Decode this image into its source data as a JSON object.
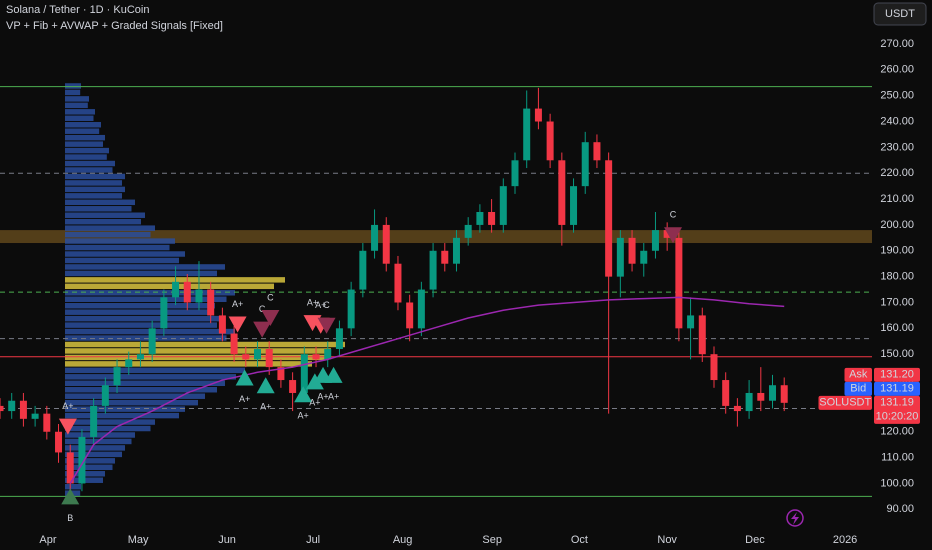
{
  "chart_data": {
    "type": "candlestick",
    "title": "Solana / Tether · 1D · KuCoin",
    "subtitle": "VP + Fib + AVWAP + Graded Signals [Fixed]",
    "currency_button": "USDT",
    "up_color": "#089981",
    "down_color": "#f23645",
    "x": [
      0,
      1,
      2,
      3,
      4,
      5,
      6,
      7,
      8,
      9,
      10,
      11,
      12,
      13,
      14,
      15,
      16,
      17,
      18,
      19,
      20,
      21,
      22,
      23,
      24,
      25,
      26,
      27,
      28,
      29,
      30,
      31,
      32,
      33,
      34,
      35,
      36,
      37,
      38,
      39,
      40,
      41,
      42,
      43,
      44,
      45,
      46,
      47,
      48,
      49,
      50,
      51,
      52,
      53,
      54,
      55,
      56,
      57,
      58,
      59,
      60,
      61,
      62,
      63,
      64,
      65,
      66,
      67
    ],
    "open": [
      130,
      128,
      132,
      125,
      127,
      120,
      112,
      100,
      118,
      130,
      138,
      145,
      148,
      150,
      160,
      172,
      178,
      170,
      175,
      165,
      158,
      150,
      148,
      152,
      145,
      140,
      135,
      150,
      148,
      152,
      160,
      175,
      190,
      200,
      185,
      170,
      160,
      175,
      190,
      185,
      195,
      200,
      205,
      200,
      215,
      225,
      245,
      240,
      225,
      200,
      215,
      232,
      225,
      180,
      195,
      185,
      190,
      198,
      195,
      160,
      165,
      150,
      140,
      130,
      128,
      135,
      132,
      138
    ],
    "high": [
      133,
      135,
      135,
      130,
      130,
      123,
      115,
      121,
      133,
      141,
      148,
      151,
      155,
      163,
      175,
      184,
      181,
      186,
      178,
      168,
      161,
      153,
      155,
      155,
      148,
      143,
      153,
      153,
      155,
      163,
      178,
      193,
      206,
      203,
      188,
      173,
      178,
      193,
      193,
      198,
      203,
      208,
      210,
      218,
      228,
      252,
      253,
      243,
      228,
      218,
      236,
      235,
      228,
      198,
      198,
      193,
      205,
      201,
      198,
      172,
      168,
      153,
      143,
      133,
      140,
      145,
      142,
      141
    ],
    "low": [
      125,
      125,
      122,
      122,
      117,
      108,
      95,
      97,
      115,
      127,
      135,
      142,
      145,
      147,
      157,
      169,
      167,
      167,
      162,
      155,
      147,
      145,
      145,
      142,
      137,
      128,
      132,
      145,
      145,
      149,
      157,
      172,
      187,
      182,
      167,
      155,
      157,
      172,
      182,
      182,
      192,
      197,
      197,
      197,
      212,
      222,
      237,
      222,
      192,
      197,
      212,
      222,
      127,
      172,
      182,
      180,
      187,
      190,
      155,
      148,
      147,
      137,
      127,
      122,
      125,
      128,
      129,
      128
    ],
    "close": [
      128,
      132,
      125,
      127,
      120,
      112,
      100,
      118,
      130,
      138,
      145,
      148,
      150,
      160,
      172,
      178,
      170,
      175,
      165,
      158,
      150,
      148,
      152,
      145,
      140,
      135,
      150,
      148,
      152,
      160,
      175,
      190,
      200,
      185,
      170,
      160,
      175,
      190,
      185,
      195,
      200,
      205,
      200,
      215,
      225,
      245,
      240,
      225,
      200,
      215,
      232,
      225,
      180,
      195,
      185,
      190,
      198,
      195,
      160,
      165,
      150,
      140,
      130,
      128,
      135,
      132,
      138,
      131.19
    ],
    "xlim": [
      0,
      74.5
    ],
    "xticks": [
      {
        "value": 4.1,
        "label": "Apr"
      },
      {
        "value": 11.8,
        "label": "May"
      },
      {
        "value": 19.4,
        "label": "Jun"
      },
      {
        "value": 26.75,
        "label": "Jul"
      },
      {
        "value": 34.4,
        "label": "Aug"
      },
      {
        "value": 42.05,
        "label": "Sep"
      },
      {
        "value": 49.5,
        "label": "Oct"
      },
      {
        "value": 57,
        "label": "Nov"
      },
      {
        "value": 64.5,
        "label": "Dec"
      },
      {
        "value": 72.2,
        "label": "2026"
      }
    ],
    "ylim": [
      82,
      287
    ],
    "yticks": [
      {
        "value": 90,
        "label": "90.00"
      },
      {
        "value": 100,
        "label": "100.00"
      },
      {
        "value": 110,
        "label": "110.00"
      },
      {
        "value": 120,
        "label": "120.00"
      },
      {
        "value": 130,
        "label": "130.00"
      },
      {
        "value": 140,
        "label": "140.00"
      },
      {
        "value": 150,
        "label": "150.00"
      },
      {
        "value": 160,
        "label": "160.00"
      },
      {
        "value": 170,
        "label": "170.00"
      },
      {
        "value": 180,
        "label": "180.00"
      },
      {
        "value": 190,
        "label": "190.00"
      },
      {
        "value": 200,
        "label": "200.00"
      },
      {
        "value": 210,
        "label": "210.00"
      },
      {
        "value": 220,
        "label": "220.00"
      },
      {
        "value": 230,
        "label": "230.00"
      },
      {
        "value": 240,
        "label": "240.00"
      },
      {
        "value": 250,
        "label": "250.00"
      },
      {
        "value": 260,
        "label": "260.00"
      },
      {
        "value": 270,
        "label": "270.00"
      }
    ],
    "volume_profile": {
      "levels": [
        95,
        100,
        105,
        110,
        115,
        120,
        125,
        130,
        135,
        140,
        145,
        150,
        155,
        160,
        165,
        170,
        175,
        180,
        185,
        190,
        195,
        200,
        205,
        210,
        215,
        220,
        225,
        230,
        235,
        240,
        245,
        250
      ],
      "volumes": [
        8,
        20,
        25,
        30,
        35,
        45,
        60,
        70,
        80,
        90,
        130,
        140,
        85,
        80,
        75,
        85,
        110,
        80,
        60,
        55,
        45,
        40,
        35,
        30,
        30,
        25,
        22,
        20,
        18,
        15,
        12,
        8
      ],
      "color": "#2a4d9c",
      "value_area_color": "#d9c440",
      "value_area": [
        [
          145,
          155
        ],
        [
          175,
          180
        ]
      ]
    },
    "zones": [
      {
        "from": 193,
        "to": 198,
        "color": "#6b4f1e"
      }
    ],
    "hlines": [
      {
        "value": 253.5,
        "color": "#4caf50",
        "style": "solid"
      },
      {
        "value": 95,
        "color": "#4caf50",
        "style": "solid"
      },
      {
        "value": 220,
        "color": "#787b86",
        "style": "dashed"
      },
      {
        "value": 174,
        "color": "#4caf50",
        "style": "dashed"
      },
      {
        "value": 156,
        "color": "#787b86",
        "style": "dashed"
      },
      {
        "value": 129,
        "color": "#787b86",
        "style": "dashed"
      },
      {
        "value": 149,
        "color": "#f23645",
        "style": "solid"
      }
    ],
    "avwap": {
      "color": "#9c27b0",
      "x": [
        6,
        8,
        10,
        13,
        16,
        19,
        22,
        25,
        28,
        31,
        34,
        37,
        40,
        43,
        46,
        49,
        52,
        55,
        58,
        61,
        64,
        67
      ],
      "values": [
        100,
        115,
        122,
        128,
        135,
        140,
        143,
        145,
        148,
        152,
        156,
        160,
        164,
        167,
        169,
        170,
        171,
        171.5,
        172,
        171,
        169.5,
        168.5
      ]
    },
    "signals": [
      {
        "x": 6,
        "price": 95,
        "dir": "up",
        "label": "B",
        "color": "#3d7a4f"
      },
      {
        "x": 5.8,
        "price": 122,
        "dir": "down",
        "label": "A+",
        "color": "#f7525f"
      },
      {
        "x": 20.3,
        "price": 161.5,
        "dir": "down",
        "label": "A+",
        "color": "#f7525f"
      },
      {
        "x": 22.4,
        "price": 159.5,
        "dir": "down",
        "label": "C",
        "color": "#8e2e4f"
      },
      {
        "x": 23.1,
        "price": 164,
        "dir": "down",
        "label": "C",
        "color": "#8e2e4f"
      },
      {
        "x": 26.7,
        "price": 162,
        "dir": "down",
        "label": "A+",
        "color": "#f7525f"
      },
      {
        "x": 27.4,
        "price": 161,
        "dir": "down",
        "label": "A+",
        "color": "#f7525f"
      },
      {
        "x": 27.9,
        "price": 161,
        "dir": "down",
        "label": "C",
        "color": "#8e2e4f"
      },
      {
        "x": 57.5,
        "price": 196,
        "dir": "down",
        "label": "C",
        "color": "#8e2e4f"
      },
      {
        "x": 20.9,
        "price": 141,
        "dir": "up",
        "label": "A+",
        "color": "#22ab94"
      },
      {
        "x": 22.7,
        "price": 138,
        "dir": "up",
        "label": "A+",
        "color": "#22ab94"
      },
      {
        "x": 25.9,
        "price": 134.5,
        "dir": "up",
        "label": "A+",
        "color": "#22ab94"
      },
      {
        "x": 26.9,
        "price": 139.5,
        "dir": "up",
        "label": "A+",
        "color": "#22ab94"
      },
      {
        "x": 27.6,
        "price": 142,
        "dir": "up",
        "label": "A+",
        "color": "#22ab94"
      },
      {
        "x": 28.5,
        "price": 142,
        "dir": "up",
        "label": "A+",
        "color": "#22ab94"
      }
    ],
    "price_tags": [
      {
        "name": "Ask",
        "value": 131.2,
        "value_label": "131.20",
        "color": "#f23645"
      },
      {
        "name": "Bid",
        "value": 131.19,
        "value_label": "131.19",
        "color": "#2962ff"
      },
      {
        "name": "SOLUSDT",
        "value": 131.19,
        "value_label": "131.19",
        "color": "#f23645",
        "countdown": "10:20:20"
      }
    ]
  }
}
